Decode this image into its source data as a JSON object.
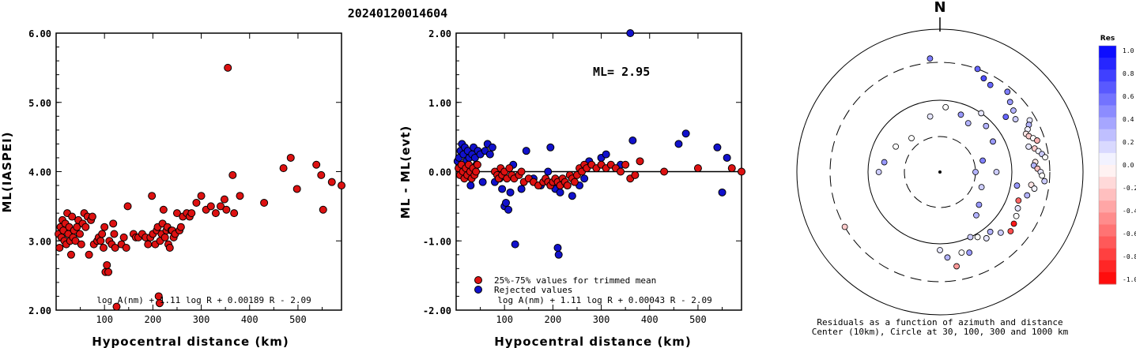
{
  "title": "20240120014604",
  "colors": {
    "accepted": "#dd1111",
    "rejected": "#1111cc",
    "frame": "#000000"
  },
  "chart_data": [
    {
      "type": "scatter",
      "name": "ml-vs-distance",
      "ylabel": "ML(IASPEI)",
      "xlabel": "Hypocentral distance (km)",
      "xlim": [
        0,
        590
      ],
      "ylim": [
        2.0,
        6.0
      ],
      "xticks": [
        "100",
        "200",
        "300",
        "400",
        "500"
      ],
      "xtick_values": [
        100,
        200,
        300,
        400,
        500
      ],
      "yticks": [
        "2.00",
        "3.00",
        "4.00",
        "5.00",
        "6.00"
      ],
      "ytick_values": [
        2,
        3,
        4,
        5,
        6
      ],
      "formula": "log A(nm) + 1.11 log R + 0.00189 R - 2.09",
      "points": [
        [
          5,
          3.1
        ],
        [
          7,
          2.9
        ],
        [
          9,
          3.2
        ],
        [
          11,
          3.05
        ],
        [
          13,
          3.3
        ],
        [
          15,
          3.15
        ],
        [
          17,
          3.0
        ],
        [
          19,
          3.25
        ],
        [
          21,
          2.95
        ],
        [
          23,
          3.4
        ],
        [
          25,
          3.1
        ],
        [
          27,
          3.2
        ],
        [
          29,
          3.0
        ],
        [
          31,
          2.8
        ],
        [
          33,
          3.35
        ],
        [
          35,
          3.05
        ],
        [
          37,
          3.15
        ],
        [
          40,
          3.0
        ],
        [
          43,
          3.2
        ],
        [
          46,
          3.3
        ],
        [
          49,
          3.1
        ],
        [
          52,
          2.95
        ],
        [
          55,
          3.25
        ],
        [
          58,
          3.4
        ],
        [
          61,
          3.2
        ],
        [
          65,
          3.35
        ],
        [
          68,
          2.8
        ],
        [
          72,
          3.3
        ],
        [
          75,
          3.35
        ],
        [
          78,
          2.95
        ],
        [
          85,
          3.0
        ],
        [
          88,
          3.05
        ],
        [
          92,
          3.0
        ],
        [
          95,
          3.1
        ],
        [
          98,
          2.9
        ],
        [
          100,
          3.2
        ],
        [
          102,
          2.55
        ],
        [
          105,
          2.65
        ],
        [
          108,
          2.55
        ],
        [
          110,
          3.0
        ],
        [
          115,
          2.95
        ],
        [
          118,
          3.25
        ],
        [
          120,
          3.1
        ],
        [
          122,
          2.9
        ],
        [
          125,
          2.05
        ],
        [
          135,
          2.95
        ],
        [
          140,
          3.05
        ],
        [
          145,
          2.9
        ],
        [
          148,
          3.5
        ],
        [
          160,
          3.1
        ],
        [
          165,
          3.05
        ],
        [
          170,
          3.05
        ],
        [
          178,
          3.1
        ],
        [
          185,
          3.05
        ],
        [
          190,
          2.95
        ],
        [
          195,
          3.05
        ],
        [
          198,
          3.65
        ],
        [
          200,
          3.1
        ],
        [
          205,
          2.95
        ],
        [
          208,
          3.15
        ],
        [
          210,
          3.2
        ],
        [
          212,
          2.2
        ],
        [
          214,
          2.1
        ],
        [
          215,
          3.0
        ],
        [
          218,
          3.1
        ],
        [
          220,
          3.25
        ],
        [
          222,
          3.45
        ],
        [
          225,
          3.05
        ],
        [
          228,
          3.15
        ],
        [
          230,
          3.2
        ],
        [
          232,
          2.95
        ],
        [
          235,
          2.9
        ],
        [
          238,
          3.15
        ],
        [
          240,
          3.15
        ],
        [
          243,
          3.05
        ],
        [
          246,
          3.1
        ],
        [
          250,
          3.4
        ],
        [
          255,
          3.15
        ],
        [
          258,
          3.2
        ],
        [
          262,
          3.35
        ],
        [
          270,
          3.4
        ],
        [
          276,
          3.35
        ],
        [
          280,
          3.4
        ],
        [
          290,
          3.55
        ],
        [
          300,
          3.65
        ],
        [
          310,
          3.45
        ],
        [
          320,
          3.5
        ],
        [
          330,
          3.4
        ],
        [
          340,
          3.5
        ],
        [
          348,
          3.6
        ],
        [
          352,
          3.45
        ],
        [
          355,
          5.5
        ],
        [
          365,
          3.95
        ],
        [
          368,
          3.4
        ],
        [
          380,
          3.65
        ],
        [
          430,
          3.55
        ],
        [
          470,
          4.05
        ],
        [
          485,
          4.2
        ],
        [
          498,
          3.75
        ],
        [
          538,
          4.1
        ],
        [
          548,
          3.95
        ],
        [
          552,
          3.45
        ],
        [
          570,
          3.85
        ],
        [
          590,
          3.8
        ]
      ]
    },
    {
      "type": "scatter",
      "name": "ml-residual-vs-distance",
      "ylabel": "ML - ML(evt)",
      "xlabel": "Hypocentral distance (km)",
      "xlim": [
        0,
        590
      ],
      "ylim": [
        -2.0,
        2.0
      ],
      "xticks": [
        "100",
        "200",
        "300",
        "400",
        "500"
      ],
      "xtick_values": [
        100,
        200,
        300,
        400,
        500
      ],
      "yticks": [
        "-2.00",
        "-1.00",
        "0.00",
        "1.00",
        "2.00"
      ],
      "ytick_values": [
        -2,
        -1,
        0,
        1,
        2
      ],
      "annotation": "ML= 2.95",
      "legend": [
        "25%-75% values for trimmed mean",
        "Rejected values"
      ],
      "formula": "log A(nm) + 1.11 log R + 0.00043 R - 2.09",
      "accepted": [
        [
          5,
          0.05
        ],
        [
          8,
          -0.05
        ],
        [
          11,
          0.1
        ],
        [
          14,
          0.0
        ],
        [
          17,
          -0.1
        ],
        [
          20,
          0.05
        ],
        [
          23,
          -0.05
        ],
        [
          26,
          0.1
        ],
        [
          29,
          0.0
        ],
        [
          32,
          -0.1
        ],
        [
          35,
          0.05
        ],
        [
          38,
          -0.05
        ],
        [
          41,
          0.0
        ],
        [
          44,
          0.1
        ],
        [
          80,
          0.0
        ],
        [
          85,
          -0.05
        ],
        [
          88,
          -0.1
        ],
        [
          92,
          0.05
        ],
        [
          95,
          -0.05
        ],
        [
          100,
          0.0
        ],
        [
          105,
          -0.1
        ],
        [
          110,
          0.05
        ],
        [
          115,
          -0.05
        ],
        [
          120,
          -0.1
        ],
        [
          130,
          -0.05
        ],
        [
          135,
          0.0
        ],
        [
          140,
          -0.15
        ],
        [
          150,
          -0.1
        ],
        [
          160,
          -0.15
        ],
        [
          170,
          -0.2
        ],
        [
          180,
          -0.15
        ],
        [
          185,
          -0.1
        ],
        [
          190,
          -0.15
        ],
        [
          195,
          -0.2
        ],
        [
          200,
          -0.15
        ],
        [
          205,
          -0.1
        ],
        [
          210,
          -0.15
        ],
        [
          215,
          -0.2
        ],
        [
          220,
          -0.1
        ],
        [
          225,
          -0.15
        ],
        [
          230,
          -0.2
        ],
        [
          235,
          -0.05
        ],
        [
          240,
          -0.1
        ],
        [
          245,
          -0.15
        ],
        [
          250,
          -0.05
        ],
        [
          255,
          0.05
        ],
        [
          260,
          0.0
        ],
        [
          265,
          0.1
        ],
        [
          270,
          0.05
        ],
        [
          280,
          0.1
        ],
        [
          290,
          0.05
        ],
        [
          300,
          0.1
        ],
        [
          310,
          0.05
        ],
        [
          320,
          0.1
        ],
        [
          330,
          0.05
        ],
        [
          340,
          0.0
        ],
        [
          350,
          0.1
        ],
        [
          360,
          -0.1
        ],
        [
          370,
          -0.05
        ],
        [
          380,
          0.15
        ],
        [
          430,
          0.0
        ],
        [
          500,
          0.05
        ],
        [
          570,
          0.05
        ],
        [
          590,
          0.0
        ]
      ],
      "rejected": [
        [
          3,
          0.15
        ],
        [
          6,
          0.2
        ],
        [
          9,
          0.3
        ],
        [
          12,
          0.4
        ],
        [
          15,
          0.25
        ],
        [
          18,
          0.35
        ],
        [
          21,
          0.15
        ],
        [
          24,
          0.3
        ],
        [
          27,
          0.2
        ],
        [
          30,
          -0.2
        ],
        [
          33,
          0.25
        ],
        [
          36,
          0.35
        ],
        [
          39,
          0.2
        ],
        [
          42,
          0.1
        ],
        [
          45,
          0.3
        ],
        [
          50,
          0.25
        ],
        [
          55,
          -0.15
        ],
        [
          60,
          0.3
        ],
        [
          65,
          0.4
        ],
        [
          70,
          0.25
        ],
        [
          75,
          0.35
        ],
        [
          80,
          -0.15
        ],
        [
          90,
          -0.1
        ],
        [
          95,
          -0.25
        ],
        [
          100,
          -0.5
        ],
        [
          103,
          -0.45
        ],
        [
          108,
          -0.55
        ],
        [
          112,
          -0.3
        ],
        [
          118,
          0.1
        ],
        [
          122,
          -1.05
        ],
        [
          135,
          -0.25
        ],
        [
          145,
          0.3
        ],
        [
          160,
          -0.1
        ],
        [
          175,
          -0.2
        ],
        [
          190,
          0.0
        ],
        [
          195,
          0.35
        ],
        [
          205,
          -0.25
        ],
        [
          210,
          -1.1
        ],
        [
          212,
          -1.2
        ],
        [
          215,
          -0.3
        ],
        [
          230,
          -0.2
        ],
        [
          240,
          -0.35
        ],
        [
          255,
          -0.2
        ],
        [
          265,
          -0.1
        ],
        [
          275,
          0.15
        ],
        [
          300,
          0.2
        ],
        [
          310,
          0.25
        ],
        [
          340,
          0.1
        ],
        [
          360,
          2.0
        ],
        [
          365,
          0.45
        ],
        [
          460,
          0.4
        ],
        [
          475,
          0.55
        ],
        [
          540,
          0.35
        ],
        [
          550,
          -0.3
        ],
        [
          560,
          0.2
        ]
      ]
    },
    {
      "type": "polar-scatter",
      "name": "residual-azimuth-map",
      "north_label": "N",
      "rings_km": [
        30,
        100,
        300,
        1000
      ],
      "caption_line1": "Residuals as a function of azimuth and distance",
      "caption_line2": "Center (10km), Circle at 30, 100, 300 and 1000 km",
      "colorbar_title": "Res",
      "colorbar_ticks": [
        "1.0",
        "0.8",
        "0.6",
        "0.4",
        "0.2",
        "0.0",
        "-0.2",
        "-0.4",
        "-0.6",
        "-0.8",
        "-1.0"
      ],
      "points_az_dist_res": [
        [
          20,
          300,
          0.6
        ],
        [
          25,
          250,
          0.7
        ],
        [
          30,
          230,
          0.6
        ],
        [
          40,
          260,
          0.5
        ],
        [
          45,
          220,
          0.4
        ],
        [
          50,
          200,
          0.3
        ],
        [
          55,
          180,
          0.2
        ],
        [
          60,
          250,
          0.1
        ],
        [
          62,
          230,
          0.3
        ],
        [
          64,
          210,
          0.05
        ],
        [
          66,
          190,
          -0.1
        ],
        [
          68,
          200,
          -0.2
        ],
        [
          70,
          220,
          0.0
        ],
        [
          72,
          240,
          -0.3
        ],
        [
          74,
          180,
          0.1
        ],
        [
          76,
          210,
          -0.2
        ],
        [
          78,
          230,
          0.05
        ],
        [
          80,
          250,
          0.2
        ],
        [
          82,
          270,
          0.0
        ],
        [
          84,
          200,
          -0.1
        ],
        [
          86,
          190,
          0.3
        ],
        [
          88,
          210,
          -0.25
        ],
        [
          90,
          230,
          0.1
        ],
        [
          92,
          240,
          0.0
        ],
        [
          95,
          260,
          0.2
        ],
        [
          98,
          180,
          -0.1
        ],
        [
          100,
          200,
          0.05
        ],
        [
          105,
          170,
          0.3
        ],
        [
          110,
          140,
          -0.6
        ],
        [
          115,
          150,
          0.1
        ],
        [
          120,
          160,
          0.0
        ],
        [
          125,
          170,
          -0.9
        ],
        [
          130,
          180,
          -0.7
        ],
        [
          135,
          150,
          0.2
        ],
        [
          140,
          120,
          0.3
        ],
        [
          145,
          130,
          0.1
        ],
        [
          150,
          110,
          0.0
        ],
        [
          155,
          100,
          0.2
        ],
        [
          160,
          150,
          0.4
        ],
        [
          165,
          140,
          0.0
        ],
        [
          170,
          200,
          -0.4
        ],
        [
          175,
          150,
          0.3
        ],
        [
          180,
          120,
          0.1
        ],
        [
          60,
          70,
          0.4
        ],
        [
          75,
          40,
          0.5
        ],
        [
          90,
          30,
          0.3
        ],
        [
          110,
          40,
          0.2
        ],
        [
          130,
          50,
          0.4
        ],
        [
          45,
          80,
          0.3
        ],
        [
          35,
          100,
          0.1
        ],
        [
          300,
          50,
          0.0
        ],
        [
          280,
          60,
          0.4
        ],
        [
          270,
          70,
          0.2
        ],
        [
          320,
          40,
          0.0
        ],
        [
          350,
          60,
          0.1
        ],
        [
          20,
          70,
          0.4
        ],
        [
          30,
          60,
          0.3
        ],
        [
          5,
          80,
          0.0
        ],
        [
          240,
          300,
          -0.2
        ],
        [
          355,
          350,
          0.5
        ],
        [
          50,
          150,
          0.6
        ],
        [
          100,
          120,
          0.4
        ],
        [
          140,
          60,
          0.3
        ],
        [
          90,
          60,
          0.2
        ]
      ]
    }
  ]
}
